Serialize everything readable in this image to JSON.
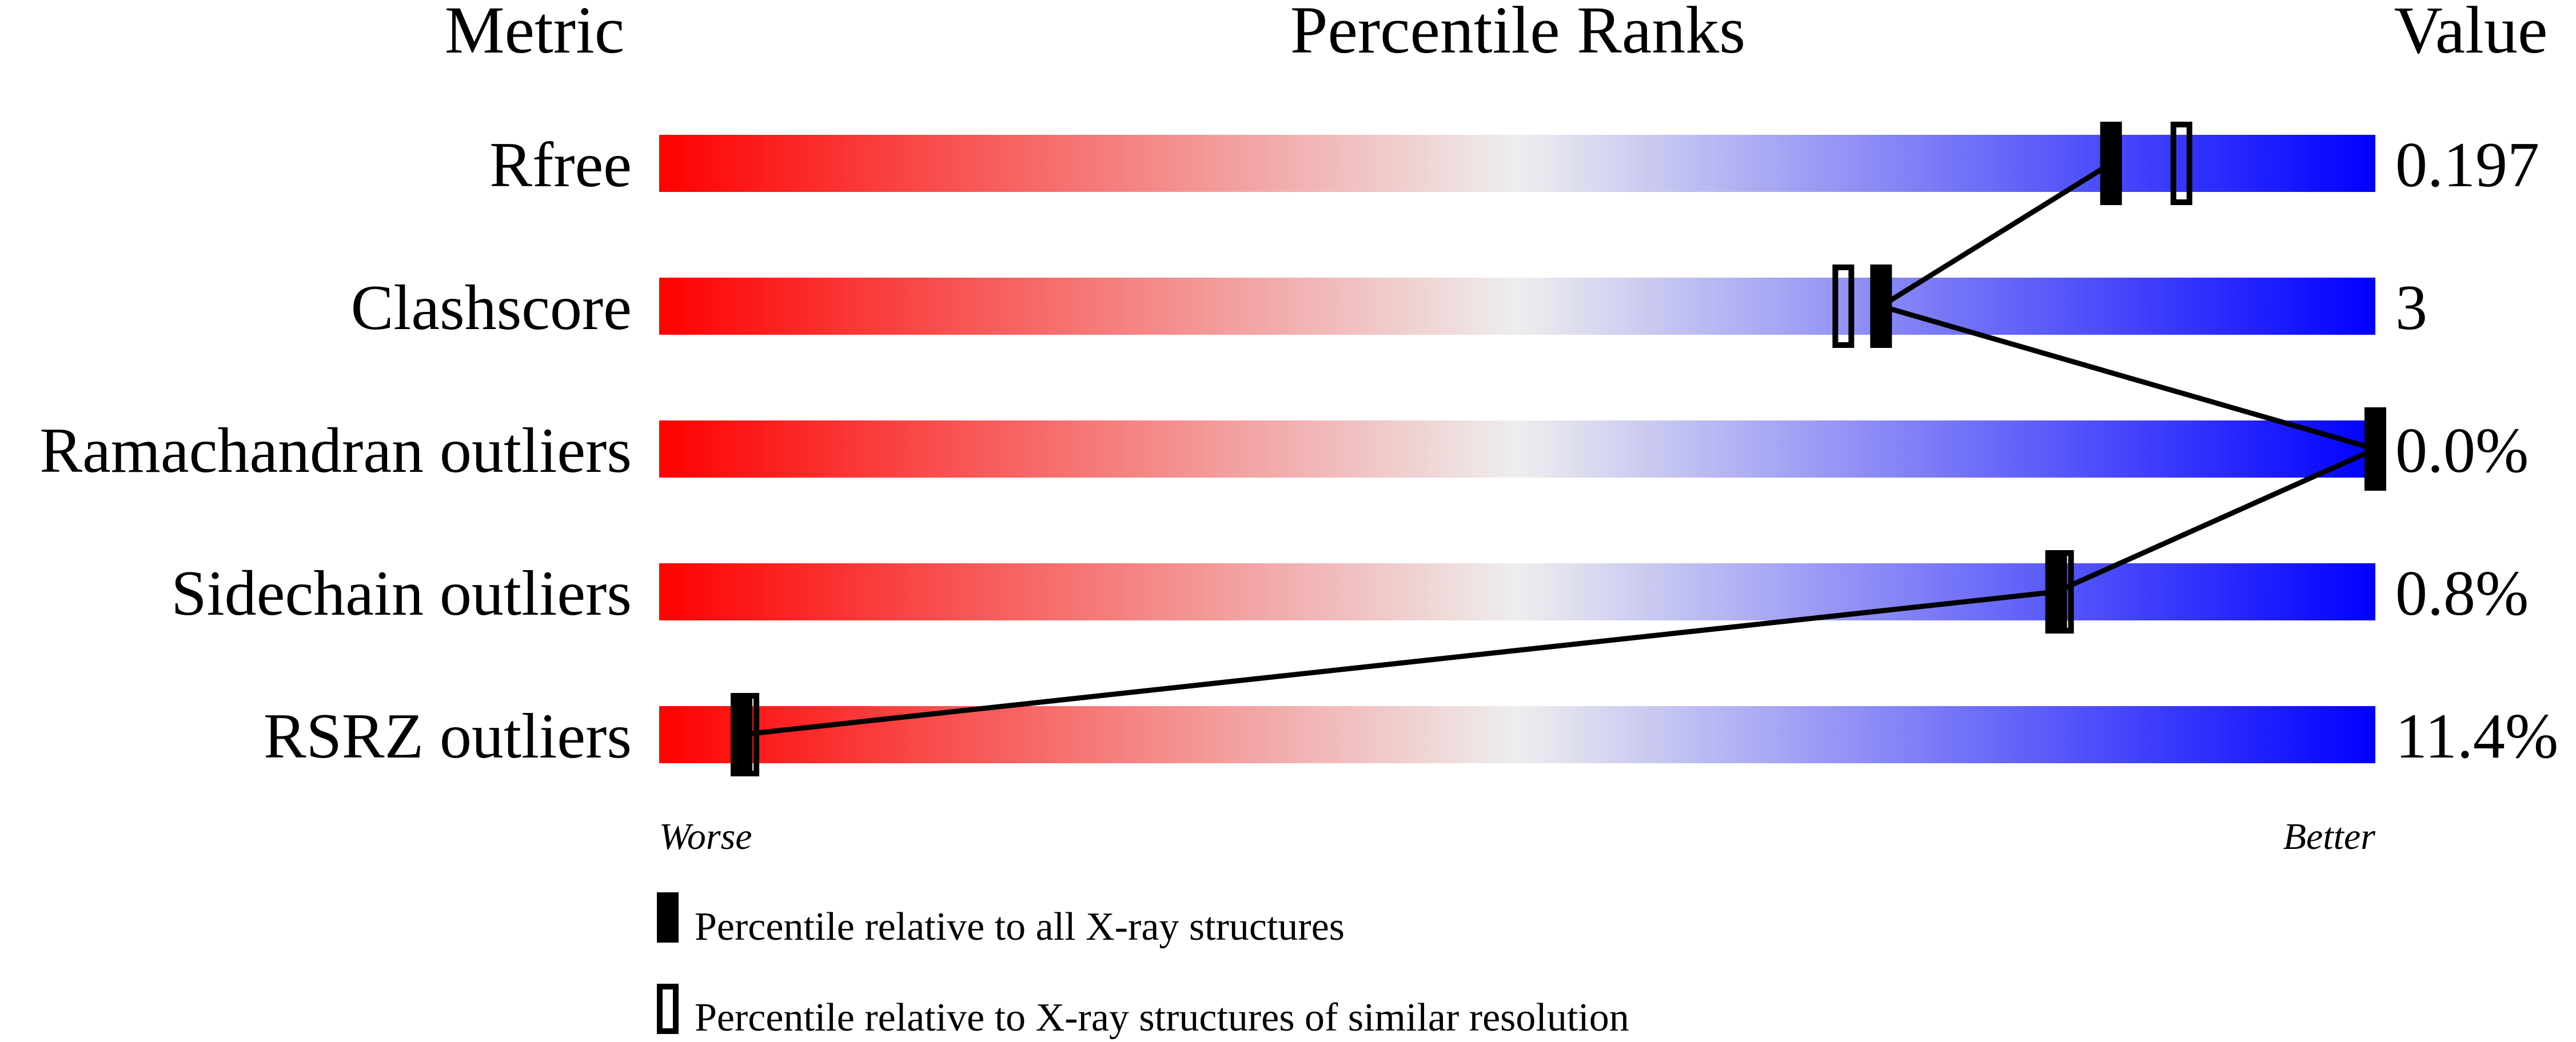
{
  "chart_data": {
    "type": "bar",
    "headers": {
      "metric": "Metric",
      "ranks": "Percentile Ranks",
      "value": "Value"
    },
    "categories": [
      "Rfree",
      "Clashscore",
      "Ramachandran outliers",
      "Sidechain outliers",
      "RSRZ outliers"
    ],
    "values_text": [
      "0.197",
      "3",
      "0.0%",
      "0.8%",
      "11.4%"
    ],
    "series": [
      {
        "name": "Percentile relative to all X-ray structures",
        "marker": "filled",
        "values": [
          84.6,
          71.2,
          100,
          81.4,
          4.8
        ]
      },
      {
        "name": "Percentile relative to X-ray structures of similar resolution",
        "marker": "open",
        "values": [
          88.7,
          69.0,
          100,
          81.8,
          5.2
        ]
      }
    ],
    "axis": {
      "left_label": "Worse",
      "right_label": "Better",
      "range": [
        0,
        100
      ]
    },
    "colors": {
      "worse": "#ff0000",
      "middle": "#eeeeee",
      "better": "#0000ff"
    }
  }
}
